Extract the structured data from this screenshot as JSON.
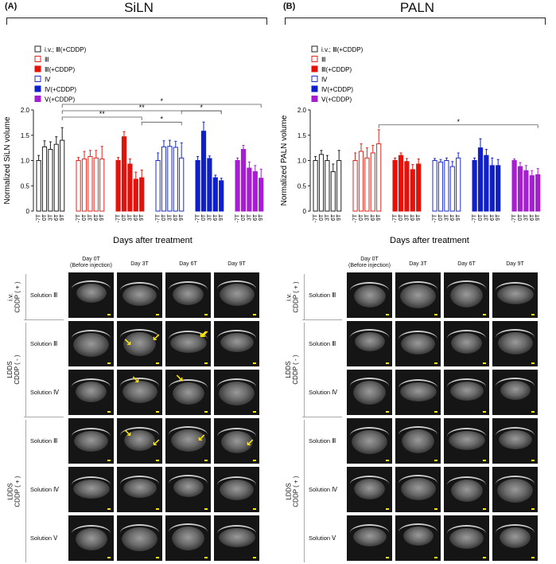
{
  "panels": [
    {
      "label": "(A)",
      "title": "SiLN",
      "columns": [
        "Day 0T\n(Before injection)",
        "Day 3T",
        "Day 6T",
        "Day 9T"
      ],
      "groups": [
        {
          "label": "i.v.\nCDDP ( + )",
          "rows": [
            "Solution Ⅲ"
          ]
        },
        {
          "label": "LDDS\nCDDP ( - )",
          "rows": [
            "Solution Ⅲ",
            "Solution Ⅳ"
          ]
        },
        {
          "label": "LDDS\nCDDP ( + )",
          "rows": [
            "Solution Ⅲ",
            "Solution Ⅳ",
            "Solution Ⅴ"
          ]
        }
      ]
    },
    {
      "label": "(B)",
      "title": "PALN",
      "columns": [
        "Day 0T\n(Before injection)",
        "Day 3T",
        "Day 6T",
        "Day 9T"
      ],
      "groups": [
        {
          "label": "i.v.\nCDDP ( + )",
          "rows": [
            "Solution Ⅲ"
          ]
        },
        {
          "label": "LDDS\nCDDP ( - )",
          "rows": [
            "Solution Ⅲ",
            "Solution Ⅳ"
          ]
        },
        {
          "label": "LDDS\nCDDP ( + )",
          "rows": [
            "Solution Ⅲ",
            "Solution Ⅳ",
            "Solution Ⅴ"
          ]
        }
      ]
    }
  ],
  "chart_data": [
    {
      "type": "bar",
      "title": "SiLN",
      "xlabel": "Days after treatment",
      "ylabel": "Normalized SiLN volume",
      "ylim": [
        0,
        2.0
      ],
      "yticks": [
        0,
        0.5,
        1.0,
        1.5,
        2.0
      ],
      "categories": [
        "-7T",
        "0T",
        "3T",
        "6T",
        "9T"
      ],
      "series": [
        {
          "name": "i.v.; Ⅲ(+CDDP)",
          "style": "outline",
          "color": "#222222",
          "values": [
            1.0,
            1.27,
            1.22,
            1.32,
            1.4
          ],
          "errors": [
            0.1,
            0.12,
            0.15,
            0.15,
            0.25
          ]
        },
        {
          "name": "Ⅲ",
          "style": "outline",
          "color": "#e3261c",
          "values": [
            1.0,
            1.03,
            1.08,
            1.05,
            1.03
          ],
          "errors": [
            0.06,
            0.15,
            0.12,
            0.15,
            0.25
          ]
        },
        {
          "name": "Ⅲ(+CDDP)",
          "style": "filled",
          "color": "#e3120b",
          "values": [
            1.0,
            1.47,
            0.93,
            0.63,
            0.66
          ],
          "errors": [
            0.06,
            0.1,
            0.1,
            0.14,
            0.15
          ]
        },
        {
          "name": "Ⅳ",
          "style": "outline",
          "color": "#1f2fc8",
          "values": [
            1.0,
            1.27,
            1.28,
            1.26,
            1.05
          ],
          "errors": [
            0.15,
            0.12,
            0.12,
            0.12,
            0.3
          ]
        },
        {
          "name": "Ⅳ(+CDDP)",
          "style": "filled",
          "color": "#1020c8",
          "values": [
            1.0,
            1.58,
            1.04,
            0.66,
            0.6
          ],
          "errors": [
            0.08,
            0.18,
            0.05,
            0.05,
            0.05
          ]
        },
        {
          "name": "Ⅴ(+CDDP)",
          "style": "filled",
          "color": "#a51fd0",
          "values": [
            1.0,
            1.22,
            0.85,
            0.78,
            0.65
          ],
          "errors": [
            0.05,
            0.08,
            0.12,
            0.12,
            0.18
          ]
        }
      ],
      "significance": [
        {
          "text": "*",
          "from": "i.v.; Ⅲ(+CDDP)",
          "to": "Ⅴ(+CDDP)"
        },
        {
          "text": "**",
          "from": "i.v.; Ⅲ(+CDDP)",
          "to": "Ⅳ(+CDDP)"
        },
        {
          "text": "**",
          "from": "i.v.; Ⅲ(+CDDP)",
          "to": "Ⅲ(+CDDP)"
        },
        {
          "text": "*",
          "from": "Ⅲ(+CDDP)",
          "to": "Ⅳ"
        },
        {
          "text": "*",
          "from": "Ⅳ",
          "to": "Ⅳ(+CDDP)"
        }
      ]
    },
    {
      "type": "bar",
      "title": "PALN",
      "xlabel": "Days after treatment",
      "ylabel": "Normalized PALN volume",
      "ylim": [
        0,
        2.0
      ],
      "yticks": [
        0,
        0.5,
        1.0,
        1.5,
        2.0
      ],
      "categories": [
        "-7T",
        "0T",
        "3T",
        "6T",
        "9T"
      ],
      "series": [
        {
          "name": "i.v.; Ⅲ(+CDDP)",
          "style": "outline",
          "color": "#222222",
          "values": [
            1.0,
            1.12,
            1.0,
            0.78,
            1.0
          ],
          "errors": [
            0.08,
            0.08,
            0.1,
            0.15,
            0.2
          ]
        },
        {
          "name": "Ⅲ",
          "style": "outline",
          "color": "#e3261c",
          "values": [
            1.0,
            1.18,
            1.05,
            1.15,
            1.33
          ],
          "errors": [
            0.15,
            0.15,
            0.2,
            0.15,
            0.28
          ]
        },
        {
          "name": "Ⅲ(+CDDP)",
          "style": "filled",
          "color": "#e3120b",
          "values": [
            1.0,
            1.1,
            0.98,
            0.82,
            0.93
          ],
          "errors": [
            0.05,
            0.05,
            0.06,
            0.1,
            0.1
          ]
        },
        {
          "name": "Ⅳ",
          "style": "outline",
          "color": "#1f2fc8",
          "values": [
            1.0,
            0.97,
            1.0,
            0.88,
            1.05
          ],
          "errors": [
            0.04,
            0.05,
            0.05,
            0.1,
            0.1
          ]
        },
        {
          "name": "Ⅳ(+CDDP)",
          "style": "filled",
          "color": "#1020c8",
          "values": [
            1.0,
            1.25,
            1.1,
            0.9,
            0.9
          ],
          "errors": [
            0.05,
            0.18,
            0.12,
            0.15,
            0.12
          ]
        },
        {
          "name": "Ⅴ(+CDDP)",
          "style": "filled",
          "color": "#a51fd0",
          "values": [
            1.0,
            0.88,
            0.8,
            0.7,
            0.72
          ],
          "errors": [
            0.03,
            0.08,
            0.1,
            0.1,
            0.12
          ]
        }
      ],
      "significance": [
        {
          "text": "*",
          "from": "Ⅲ",
          "to": "Ⅴ(+CDDP)"
        }
      ]
    }
  ]
}
